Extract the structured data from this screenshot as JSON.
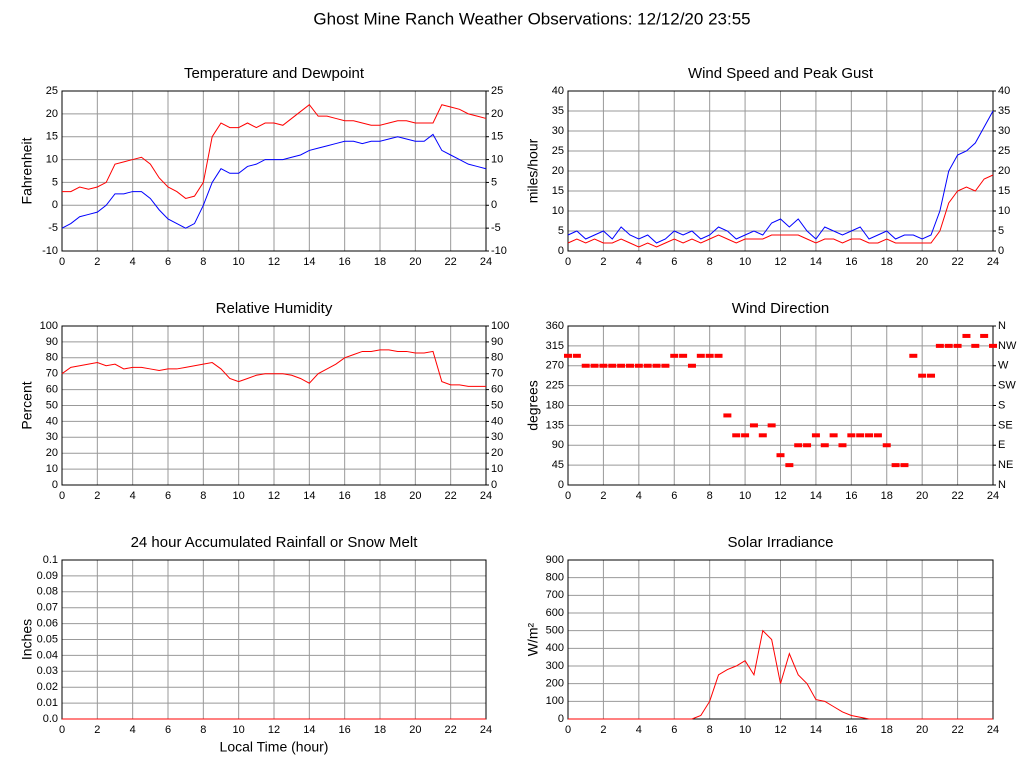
{
  "title": "Ghost Mine Ranch Weather Observations: 12/12/20 23:55",
  "chart_data": [
    {
      "type": "line",
      "title": "Temperature and Dewpoint",
      "ylabel": "Fahrenheit",
      "x": [
        0,
        0.5,
        1,
        1.5,
        2,
        2.5,
        3,
        3.5,
        4,
        4.5,
        5,
        5.5,
        6,
        6.5,
        7,
        7.5,
        8,
        8.5,
        9,
        9.5,
        10,
        10.5,
        11,
        11.5,
        12,
        12.5,
        13,
        13.5,
        14,
        14.5,
        15,
        15.5,
        16,
        16.5,
        17,
        17.5,
        18,
        18.5,
        19,
        19.5,
        20,
        20.5,
        21,
        21.5,
        22,
        22.5,
        23,
        23.5,
        24
      ],
      "xlim": [
        0,
        24
      ],
      "xticks": [
        0,
        2,
        4,
        6,
        8,
        10,
        12,
        14,
        16,
        18,
        20,
        22,
        24
      ],
      "ylim": [
        -10,
        25
      ],
      "yticks": [
        -10,
        -5,
        0,
        5,
        10,
        15,
        20,
        25
      ],
      "y2lim": [
        -10,
        25
      ],
      "y2ticks": [
        -10,
        -5,
        0,
        5,
        10,
        15,
        20,
        25
      ],
      "grid": true,
      "series": [
        {
          "color": "#ff0000",
          "values": [
            3,
            3,
            4,
            3.5,
            4,
            5,
            9,
            9.5,
            10,
            10.5,
            9,
            6,
            4,
            3,
            1.5,
            2,
            5,
            15,
            18,
            17,
            17,
            18,
            17,
            18,
            18,
            17.5,
            19,
            20.5,
            22,
            19.5,
            19.5,
            19,
            18.5,
            18.5,
            18,
            17.5,
            17.5,
            18,
            18.5,
            18.5,
            18,
            18,
            18,
            22,
            21.5,
            21,
            20,
            19.5,
            19
          ]
        },
        {
          "color": "#0000ff",
          "values": [
            -5,
            -4,
            -2.5,
            -2,
            -1.5,
            0,
            2.5,
            2.5,
            3,
            3,
            1.5,
            -1,
            -3,
            -4,
            -5,
            -4,
            0,
            5,
            8,
            7,
            7,
            8.5,
            9,
            10,
            10,
            10,
            10.5,
            11,
            12,
            12.5,
            13,
            13.5,
            14,
            14,
            13.5,
            14,
            14,
            14.5,
            15,
            14.5,
            14,
            14,
            15.5,
            12,
            11,
            10,
            9,
            8.5,
            8
          ]
        }
      ]
    },
    {
      "type": "line",
      "title": "Wind Speed and Peak Gust",
      "ylabel": "miles/hour",
      "x": [
        0,
        0.5,
        1,
        1.5,
        2,
        2.5,
        3,
        3.5,
        4,
        4.5,
        5,
        5.5,
        6,
        6.5,
        7,
        7.5,
        8,
        8.5,
        9,
        9.5,
        10,
        10.5,
        11,
        11.5,
        12,
        12.5,
        13,
        13.5,
        14,
        14.5,
        15,
        15.5,
        16,
        16.5,
        17,
        17.5,
        18,
        18.5,
        19,
        19.5,
        20,
        20.5,
        21,
        21.5,
        22,
        22.5,
        23,
        23.5,
        24
      ],
      "xlim": [
        0,
        24
      ],
      "xticks": [
        0,
        2,
        4,
        6,
        8,
        10,
        12,
        14,
        16,
        18,
        20,
        22,
        24
      ],
      "ylim": [
        0,
        40
      ],
      "yticks": [
        0,
        5,
        10,
        15,
        20,
        25,
        30,
        35,
        40
      ],
      "y2lim": [
        0,
        40
      ],
      "y2ticks": [
        0,
        5,
        10,
        15,
        20,
        25,
        30,
        35,
        40
      ],
      "grid": true,
      "series": [
        {
          "color": "#0000ff",
          "values": [
            4,
            5,
            3,
            4,
            5,
            3,
            6,
            4,
            3,
            4,
            2,
            3,
            5,
            4,
            5,
            3,
            4,
            6,
            5,
            3,
            4,
            5,
            4,
            7,
            8,
            6,
            8,
            5,
            3,
            6,
            5,
            4,
            5,
            6,
            3,
            4,
            5,
            3,
            4,
            4,
            3,
            4,
            10,
            20,
            24,
            25,
            27,
            31,
            35
          ]
        },
        {
          "color": "#ff0000",
          "values": [
            2,
            3,
            2,
            3,
            2,
            2,
            3,
            2,
            1,
            2,
            1,
            2,
            3,
            2,
            3,
            2,
            3,
            4,
            3,
            2,
            3,
            3,
            3,
            4,
            4,
            4,
            4,
            3,
            2,
            3,
            3,
            2,
            3,
            3,
            2,
            2,
            3,
            2,
            2,
            2,
            2,
            2,
            5,
            12,
            15,
            16,
            15,
            18,
            19
          ]
        }
      ]
    },
    {
      "type": "line",
      "title": "Relative Humidity",
      "ylabel": "Percent",
      "x": [
        0,
        0.5,
        1,
        1.5,
        2,
        2.5,
        3,
        3.5,
        4,
        4.5,
        5,
        5.5,
        6,
        6.5,
        7,
        7.5,
        8,
        8.5,
        9,
        9.5,
        10,
        10.5,
        11,
        11.5,
        12,
        12.5,
        13,
        13.5,
        14,
        14.5,
        15,
        15.5,
        16,
        16.5,
        17,
        17.5,
        18,
        18.5,
        19,
        19.5,
        20,
        20.5,
        21,
        21.5,
        22,
        22.5,
        23,
        23.5,
        24
      ],
      "xlim": [
        0,
        24
      ],
      "xticks": [
        0,
        2,
        4,
        6,
        8,
        10,
        12,
        14,
        16,
        18,
        20,
        22,
        24
      ],
      "ylim": [
        0,
        100
      ],
      "yticks": [
        0,
        10,
        20,
        30,
        40,
        50,
        60,
        70,
        80,
        90,
        100
      ],
      "y2lim": [
        0,
        100
      ],
      "y2ticks": [
        0,
        10,
        20,
        30,
        40,
        50,
        60,
        70,
        80,
        90,
        100
      ],
      "grid": true,
      "series": [
        {
          "color": "#ff0000",
          "values": [
            70,
            74,
            75,
            76,
            77,
            75,
            76,
            73,
            74,
            74,
            73,
            72,
            73,
            73,
            74,
            75,
            76,
            77,
            73,
            67,
            65,
            67,
            69,
            70,
            70,
            70,
            69,
            67,
            64,
            70,
            73,
            76,
            80,
            82,
            84,
            84,
            85,
            85,
            84,
            84,
            83,
            83,
            84,
            65,
            63,
            63,
            62,
            62,
            62
          ]
        }
      ]
    },
    {
      "type": "scatter",
      "title": "Wind Direction",
      "ylabel": "degrees",
      "x": [
        0,
        0.5,
        1,
        1.5,
        2,
        2.5,
        3,
        3.5,
        4,
        4.5,
        5,
        5.5,
        6,
        6.5,
        7,
        7.5,
        8,
        8.5,
        9,
        9.5,
        10,
        10.5,
        11,
        11.5,
        12,
        12.5,
        13,
        13.5,
        14,
        14.5,
        15,
        15.5,
        16,
        16.5,
        17,
        17.5,
        18,
        18.5,
        19,
        19.5,
        20,
        20.5,
        21,
        21.5,
        22,
        22.5,
        23,
        23.5,
        24
      ],
      "xlim": [
        0,
        24
      ],
      "xticks": [
        0,
        2,
        4,
        6,
        8,
        10,
        12,
        14,
        16,
        18,
        20,
        22,
        24
      ],
      "ylim": [
        0,
        360
      ],
      "yticks": [
        0,
        45,
        90,
        135,
        180,
        225,
        270,
        315,
        360
      ],
      "y2lim": [
        0,
        360
      ],
      "y2ticks": [
        {
          "value": 0,
          "label": "N"
        },
        {
          "value": 45,
          "label": "NE"
        },
        {
          "value": 90,
          "label": "E"
        },
        {
          "value": 135,
          "label": "SE"
        },
        {
          "value": 180,
          "label": "S"
        },
        {
          "value": 225,
          "label": "SW"
        },
        {
          "value": 270,
          "label": "W"
        },
        {
          "value": 315,
          "label": "NW"
        },
        {
          "value": 360,
          "label": "N"
        }
      ],
      "grid": true,
      "series": [
        {
          "color": "#ff0000",
          "values": [
            292.5,
            292.5,
            270,
            270,
            270,
            270,
            270,
            270,
            270,
            270,
            270,
            270,
            292.5,
            292.5,
            270,
            292.5,
            292.5,
            292.5,
            157.5,
            112.5,
            112.5,
            135,
            112.5,
            135,
            67.5,
            45,
            90,
            90,
            112.5,
            90,
            112.5,
            90,
            112.5,
            112.5,
            112.5,
            112.5,
            90,
            45,
            45,
            292.5,
            247.5,
            247.5,
            315,
            315,
            315,
            337.5,
            315,
            337.5,
            315
          ]
        }
      ]
    },
    {
      "type": "line",
      "title": "24 hour Accumulated Rainfall or Snow Melt",
      "ylabel": "Inches",
      "xlabel": "Local Time (hour)",
      "x": [
        0,
        0.5,
        1,
        1.5,
        2,
        2.5,
        3,
        3.5,
        4,
        4.5,
        5,
        5.5,
        6,
        6.5,
        7,
        7.5,
        8,
        8.5,
        9,
        9.5,
        10,
        10.5,
        11,
        11.5,
        12,
        12.5,
        13,
        13.5,
        14,
        14.5,
        15,
        15.5,
        16,
        16.5,
        17,
        17.5,
        18,
        18.5,
        19,
        19.5,
        20,
        20.5,
        21,
        21.5,
        22,
        22.5,
        23,
        23.5,
        24
      ],
      "xlim": [
        0,
        24
      ],
      "xticks": [
        0,
        2,
        4,
        6,
        8,
        10,
        12,
        14,
        16,
        18,
        20,
        22,
        24
      ],
      "ylim": [
        0,
        0.1
      ],
      "yticks": [
        {
          "value": 0,
          "label": "0.0"
        },
        0.01,
        0.02,
        0.03,
        0.04,
        0.05,
        0.06,
        0.07,
        0.08,
        0.09,
        0.1
      ],
      "grid": true,
      "series": [
        {
          "color": "#ff0000",
          "values": [
            0,
            0,
            0,
            0,
            0,
            0,
            0,
            0,
            0,
            0,
            0,
            0,
            0,
            0,
            0,
            0,
            0,
            0,
            0,
            0,
            0,
            0,
            0,
            0,
            0,
            0,
            0,
            0,
            0,
            0,
            0,
            0,
            0,
            0,
            0,
            0,
            0,
            0,
            0,
            0,
            0,
            0,
            0,
            0,
            0,
            0,
            0,
            0,
            0
          ]
        }
      ]
    },
    {
      "type": "line",
      "title": "Solar Irradiance",
      "ylabel": "W/m²",
      "x": [
        0,
        0.5,
        1,
        1.5,
        2,
        2.5,
        3,
        3.5,
        4,
        4.5,
        5,
        5.5,
        6,
        6.5,
        7,
        7.5,
        8,
        8.5,
        9,
        9.5,
        10,
        10.5,
        11,
        11.5,
        12,
        12.5,
        13,
        13.5,
        14,
        14.5,
        15,
        15.5,
        16,
        16.5,
        17,
        17.5,
        18,
        18.5,
        19,
        19.5,
        20,
        20.5,
        21,
        21.5,
        22,
        22.5,
        23,
        23.5,
        24
      ],
      "xlim": [
        0,
        24
      ],
      "xticks": [
        0,
        2,
        4,
        6,
        8,
        10,
        12,
        14,
        16,
        18,
        20,
        22,
        24
      ],
      "ylim": [
        0,
        900
      ],
      "yticks": [
        0,
        100,
        200,
        300,
        400,
        500,
        600,
        700,
        800,
        900
      ],
      "grid": true,
      "series": [
        {
          "color": "#ff0000",
          "values": [
            0,
            0,
            0,
            0,
            0,
            0,
            0,
            0,
            0,
            0,
            0,
            0,
            0,
            0,
            0,
            20,
            100,
            250,
            280,
            300,
            330,
            250,
            500,
            450,
            200,
            370,
            250,
            200,
            110,
            100,
            70,
            40,
            20,
            10,
            0,
            0,
            0,
            0,
            0,
            0,
            0,
            0,
            0,
            0,
            0,
            0,
            0,
            0,
            0
          ]
        }
      ]
    }
  ]
}
